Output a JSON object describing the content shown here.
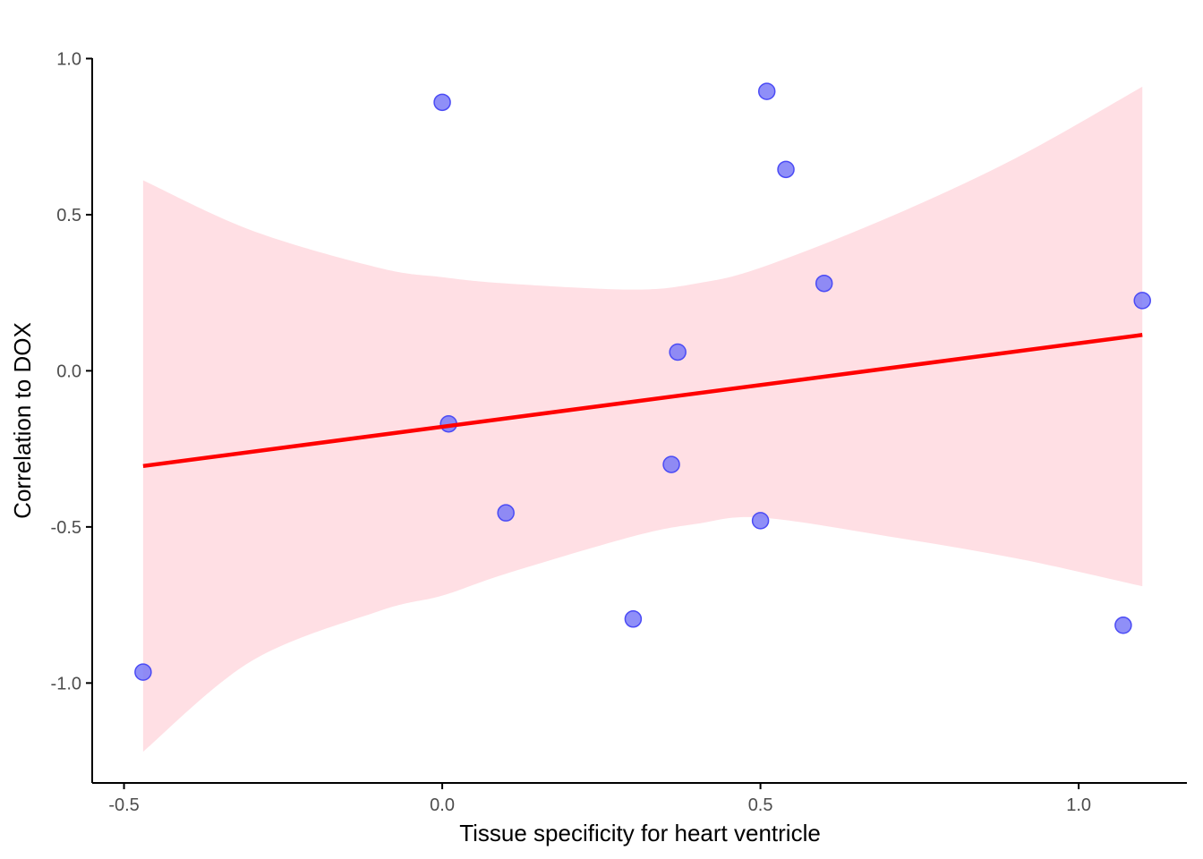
{
  "chart_data": {
    "type": "scatter",
    "title": "",
    "xlabel": "Tissue specificity for heart ventricle",
    "ylabel": "Correlation to DOX",
    "xlim": [
      -0.55,
      1.17
    ],
    "ylim": [
      -1.32,
      1.03
    ],
    "x_ticks": [
      -0.5,
      0.0,
      0.5,
      1.0
    ],
    "x_tick_labels": [
      "-0.5",
      "0.0",
      "0.5",
      "1.0"
    ],
    "y_ticks": [
      -1.0,
      -0.5,
      0.0,
      0.5,
      1.0
    ],
    "y_tick_labels": [
      "-1.0",
      "-0.5",
      "0.0",
      "0.5",
      "1.0"
    ],
    "grid": false,
    "legend": "none",
    "points": [
      {
        "x": 0.0,
        "y": 0.86
      },
      {
        "x": 0.51,
        "y": 0.895
      },
      {
        "x": 0.54,
        "y": 0.645
      },
      {
        "x": 0.6,
        "y": 0.28
      },
      {
        "x": 1.1,
        "y": 0.225
      },
      {
        "x": 0.37,
        "y": 0.06
      },
      {
        "x": 0.01,
        "y": -0.17
      },
      {
        "x": 0.36,
        "y": -0.3
      },
      {
        "x": 0.1,
        "y": -0.455
      },
      {
        "x": 0.5,
        "y": -0.48
      },
      {
        "x": 0.3,
        "y": -0.795
      },
      {
        "x": 1.07,
        "y": -0.815
      },
      {
        "x": -0.47,
        "y": -0.965
      }
    ],
    "regression": {
      "x": [
        -0.47,
        1.1
      ],
      "y": [
        -0.305,
        0.115
      ]
    },
    "confidence_band": {
      "x": [
        -0.47,
        -0.3,
        -0.1,
        0.0,
        0.1,
        0.3,
        0.4,
        0.5,
        0.7,
        0.9,
        1.1
      ],
      "upper": [
        0.61,
        0.45,
        0.33,
        0.3,
        0.28,
        0.26,
        0.28,
        0.33,
        0.49,
        0.68,
        0.91
      ],
      "lower": [
        -1.22,
        -0.93,
        -0.77,
        -0.72,
        -0.65,
        -0.53,
        -0.49,
        -0.47,
        -0.53,
        -0.6,
        -0.69
      ]
    },
    "colors": {
      "point_fill": "#7b7bf7",
      "point_stroke": "#4b4bf5",
      "line": "#ff0000",
      "band": "#ffdfe4",
      "axis": "#000000"
    }
  }
}
